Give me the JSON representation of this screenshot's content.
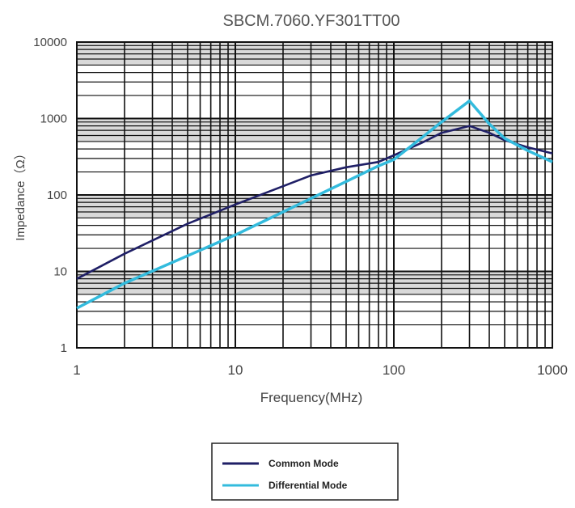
{
  "chart_data": {
    "type": "line",
    "title": "SBCM.7060.YF301TT00",
    "xlabel": "Frequency(MHz)",
    "ylabel": "Impedance（Ω）",
    "xscale": "log",
    "yscale": "log",
    "xlim": [
      1,
      1000
    ],
    "ylim": [
      1,
      10000
    ],
    "x_ticks": [
      1,
      10,
      100,
      1000
    ],
    "x_tick_labels": [
      "1",
      "10",
      "100",
      "1000"
    ],
    "y_ticks": [
      1,
      10,
      100,
      1000,
      10000
    ],
    "y_tick_labels": [
      "1",
      "10",
      "100",
      "1000",
      "10000"
    ],
    "grid": true,
    "legend_position": "bottom-center",
    "series": [
      {
        "name": "Common Mode",
        "color": "#1f1f66",
        "x": [
          1,
          2,
          5,
          10,
          20,
          30,
          50,
          80,
          100,
          150,
          200,
          300,
          400,
          500,
          700,
          1000
        ],
        "y": [
          8,
          17,
          42,
          75,
          130,
          180,
          230,
          270,
          330,
          480,
          650,
          800,
          650,
          520,
          420,
          350
        ]
      },
      {
        "name": "Differential Mode",
        "color": "#33bbdd",
        "x": [
          1,
          2,
          5,
          10,
          20,
          30,
          50,
          80,
          100,
          150,
          200,
          300,
          400,
          500,
          700,
          1000
        ],
        "y": [
          3.3,
          7,
          16,
          30,
          60,
          90,
          150,
          240,
          290,
          560,
          900,
          1700,
          850,
          550,
          380,
          270
        ]
      }
    ]
  }
}
